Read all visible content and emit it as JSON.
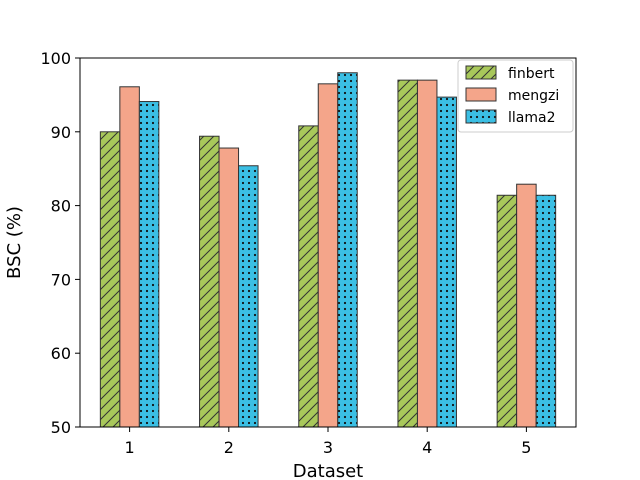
{
  "chart_data": {
    "type": "bar",
    "title": "",
    "xlabel": "Dataset",
    "ylabel": "BSC (%)",
    "categories": [
      "1",
      "2",
      "3",
      "4",
      "5"
    ],
    "ylim": [
      50,
      100
    ],
    "yticks": [
      "50",
      "60",
      "70",
      "80",
      "90",
      "100"
    ],
    "grid": false,
    "legend": "top-right",
    "series": [
      {
        "name": "finbert",
        "values": [
          90.0,
          89.4,
          90.8,
          97.0,
          81.4
        ],
        "color": "#a8c85a",
        "pattern": "diagonal-hatch"
      },
      {
        "name": "mengzi",
        "values": [
          96.1,
          87.8,
          96.5,
          97.0,
          82.9
        ],
        "color": "#f4a58a",
        "pattern": "none"
      },
      {
        "name": "llama2",
        "values": [
          94.1,
          85.4,
          98.0,
          94.7,
          81.4
        ],
        "color": "#3bbfe4",
        "pattern": "dots"
      }
    ]
  }
}
